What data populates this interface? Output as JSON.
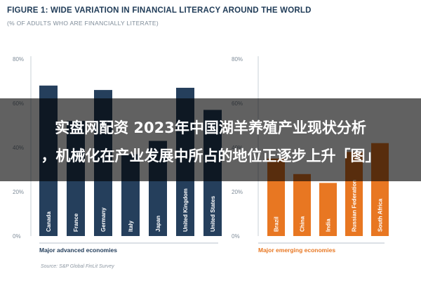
{
  "header": {
    "title": "FIGURE 1: WIDE VARIATION IN FINANCIAL LITERACY AROUND THE WORLD",
    "subtitle": "(% OF ADULTS WHO ARE FINANCIALLY LITERATE)"
  },
  "source": "Source: S&P Global FinLit Survey",
  "overlay": {
    "line1": "实盘网配资 2023年中国湖羊养殖产业现状分析",
    "line2": "，机械化在产业发展中所占的地位正逐步上升「图」",
    "background": "#000000"
  },
  "colors": {
    "advanced": "#253f5c",
    "emerging": "#e87722"
  },
  "chart_data": [
    {
      "type": "bar",
      "title": "Major advanced economies",
      "categories": [
        "Canada",
        "France",
        "Germany",
        "Italy",
        "Japan",
        "United Kingdom",
        "United States"
      ],
      "values": [
        68,
        52,
        66,
        37,
        43,
        67,
        57
      ],
      "ylim": [
        0,
        80
      ],
      "yticks": [
        "0%",
        "20%",
        "40%",
        "60%",
        "80%"
      ],
      "grid": false
    },
    {
      "type": "bar",
      "title": "Major emerging economies",
      "categories": [
        "Brazil",
        "China",
        "India",
        "Russian Federation",
        "South Africa"
      ],
      "values": [
        35,
        28,
        24,
        38,
        42
      ],
      "ylim": [
        0,
        80
      ],
      "yticks": [
        "0%",
        "20%",
        "40%",
        "60%",
        "80%"
      ],
      "grid": false
    }
  ]
}
